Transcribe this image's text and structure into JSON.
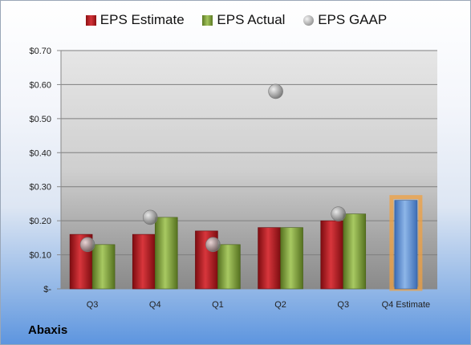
{
  "chart_data": {
    "type": "bar",
    "categories": [
      "Q3",
      "Q4",
      "Q1",
      "Q2",
      "Q3",
      "Q4 Estimate"
    ],
    "series": [
      {
        "name": "EPS Estimate",
        "values": [
          0.16,
          0.16,
          0.17,
          0.18,
          0.2,
          null
        ],
        "color": "#c0272d"
      },
      {
        "name": "EPS Actual",
        "values": [
          0.13,
          0.21,
          0.13,
          0.18,
          0.22,
          null
        ],
        "color": "#8fb04a"
      },
      {
        "name": "EPS GAAP",
        "values": [
          0.13,
          0.21,
          0.13,
          0.58,
          0.22,
          null
        ],
        "color": "#a6a6a6",
        "marker": "circle"
      },
      {
        "name": "Q4 Estimate",
        "values": [
          null,
          null,
          null,
          null,
          null,
          0.26
        ],
        "color": "#6e9fd8",
        "highlight": "#f0a040"
      }
    ],
    "yticks": [
      "$-",
      "$0.10",
      "$0.20",
      "$0.30",
      "$0.40",
      "$0.50",
      "$0.60",
      "$0.70"
    ],
    "ylim": [
      0,
      0.7
    ],
    "legend_position": "top",
    "grid": true
  },
  "company": "Abaxis"
}
